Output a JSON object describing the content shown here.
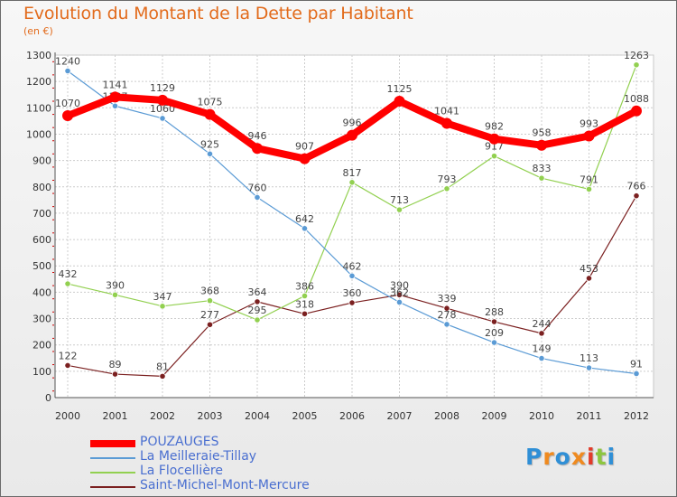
{
  "chart_data": {
    "type": "line",
    "title": "Evolution du Montant de la Dette par Habitant",
    "subtitle": "(en €)",
    "xlabel": "",
    "ylabel": "",
    "x": [
      "2000",
      "2001",
      "2002",
      "2003",
      "2004",
      "2005",
      "2006",
      "2007",
      "2008",
      "2009",
      "2010",
      "2011",
      "2012"
    ],
    "ylim": [
      0,
      1300
    ],
    "yticks": [
      0,
      100,
      200,
      300,
      400,
      500,
      600,
      700,
      800,
      900,
      1000,
      1100,
      1200,
      1300
    ],
    "grid": true,
    "legend_position": "bottom-left",
    "series": [
      {
        "name": "POUZAUGES",
        "color": "#ff0000",
        "values": [
          1070,
          1141,
          1129,
          1075,
          946,
          907,
          996,
          1125,
          1041,
          982,
          958,
          993,
          1088
        ]
      },
      {
        "name": "La Meilleraie-Tillay",
        "color": "#5b9bd5",
        "values": [
          1240,
          1107,
          1060,
          925,
          760,
          642,
          462,
          362,
          278,
          209,
          149,
          113,
          91
        ]
      },
      {
        "name": "La Flocellière",
        "color": "#92d050",
        "values": [
          432,
          390,
          347,
          368,
          295,
          386,
          817,
          713,
          793,
          917,
          833,
          791,
          1263
        ]
      },
      {
        "name": "Saint-Michel-Mont-Mercure",
        "color": "#7b2020",
        "values": [
          122,
          89,
          81,
          277,
          364,
          318,
          360,
          390,
          339,
          288,
          244,
          453,
          766
        ]
      }
    ]
  },
  "logo": {
    "letters": [
      "P",
      "r",
      "o",
      "x",
      "i",
      "t",
      "i"
    ],
    "colors": [
      "#2f8fd6",
      "#ef8a1f",
      "#2f8fd6",
      "#ef8a1f",
      "#e23b2a",
      "#8dc63f",
      "#2f8fd6"
    ]
  }
}
